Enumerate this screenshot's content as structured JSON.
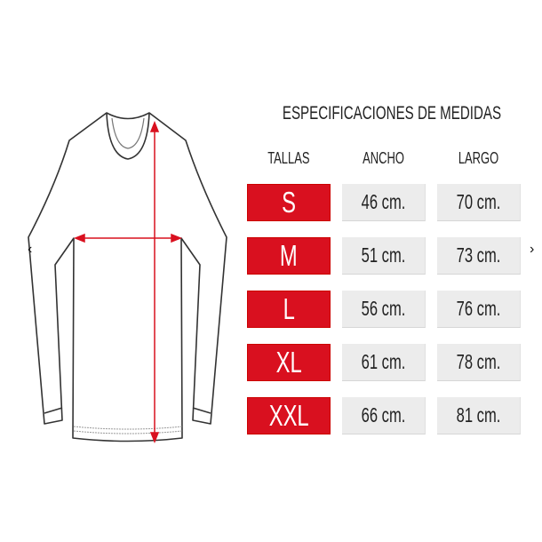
{
  "title": "ESPECIFICACIONES DE MEDIDAS",
  "columns": {
    "size": "TALLAS",
    "width": "ANCHO",
    "length": "LARGO"
  },
  "rows": [
    {
      "size": "S",
      "width": "46 cm.",
      "length": "70 cm."
    },
    {
      "size": "M",
      "width": "51 cm.",
      "length": "73 cm."
    },
    {
      "size": "L",
      "width": "56 cm.",
      "length": "76 cm."
    },
    {
      "size": "XL",
      "width": "61 cm.",
      "length": "78 cm."
    },
    {
      "size": "XXL",
      "width": "66 cm.",
      "length": "81 cm."
    }
  ],
  "nav": {
    "prev": "‹",
    "next": "›"
  },
  "colors": {
    "size_cell": "#d9101f",
    "value_cell": "#ececec",
    "measure_arrow": "#d9101f"
  },
  "icons": {
    "prev": "chevron-left-icon",
    "next": "chevron-right-icon",
    "shirt": "long-sleeve-shirt-diagram"
  }
}
